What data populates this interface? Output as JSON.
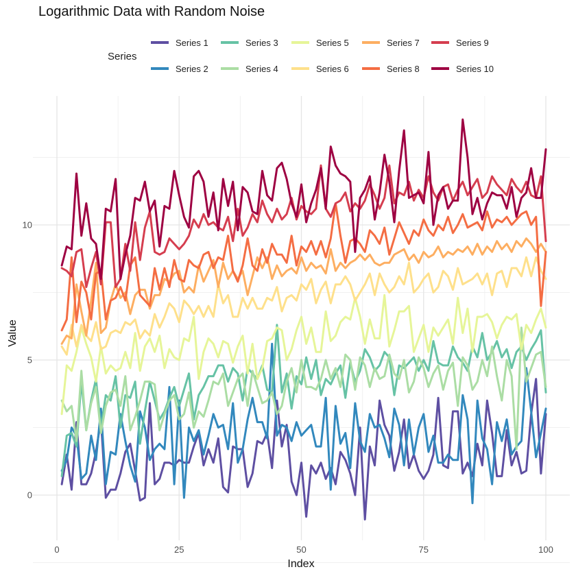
{
  "chart_data": {
    "type": "line",
    "title": "Logarithmic Data with Random Noise",
    "xlabel": "Index",
    "ylabel": "Value",
    "xlim": [
      0,
      100
    ],
    "ylim": [
      -1,
      14.5
    ],
    "x_ticks": [
      0,
      25,
      50,
      75,
      100
    ],
    "y_ticks": [
      0,
      5,
      10
    ],
    "grid": true,
    "legend_title": "Series",
    "legend_position": "top",
    "x": [
      1,
      2,
      3,
      4,
      5,
      6,
      7,
      8,
      9,
      10,
      11,
      12,
      13,
      14,
      15,
      16,
      17,
      18,
      19,
      20,
      21,
      22,
      23,
      24,
      25,
      26,
      27,
      28,
      29,
      30,
      31,
      32,
      33,
      34,
      35,
      36,
      37,
      38,
      39,
      40,
      41,
      42,
      43,
      44,
      45,
      46,
      47,
      48,
      49,
      50,
      51,
      52,
      53,
      54,
      55,
      56,
      57,
      58,
      59,
      60,
      61,
      62,
      63,
      64,
      65,
      66,
      67,
      68,
      69,
      70,
      71,
      72,
      73,
      74,
      75,
      76,
      77,
      78,
      79,
      80,
      81,
      82,
      83,
      84,
      85,
      86,
      87,
      88,
      89,
      90,
      91,
      92,
      93,
      94,
      95,
      96,
      97,
      98,
      99,
      100
    ],
    "series": [
      {
        "name": "Series 1",
        "color": "#5E4FA2",
        "values": [
          0.4,
          1.5,
          0.2,
          2.7,
          0.4,
          0.4,
          0.8,
          1.6,
          2.8,
          -0.1,
          0.2,
          0.2,
          0.8,
          1.6,
          1.9,
          0.9,
          -0.2,
          -0.1,
          3.4,
          0.4,
          0.6,
          1.2,
          1.2,
          1.1,
          1.3,
          1.2,
          1.2,
          1.8,
          2.3,
          1.1,
          1.7,
          1.2,
          2.1,
          0.3,
          0.1,
          1.8,
          1.7,
          1.7,
          0.3,
          0.8,
          2.0,
          1.9,
          2.3,
          1.0,
          3.5,
          1.8,
          2.6,
          0.5,
          0.0,
          1.2,
          -0.8,
          1.1,
          0.8,
          1.2,
          0.6,
          1.0,
          0.4,
          1.6,
          1.3,
          0.8,
          0.0,
          2.5,
          -0.9,
          1.8,
          1.1,
          3.5,
          2.6,
          2.2,
          0.9,
          1.6,
          2.8,
          1.0,
          1.5,
          0.9,
          0.6,
          0.9,
          1.5,
          3.6,
          1.1,
          1.0,
          3.1,
          3.1,
          0.8,
          1.2,
          0.7,
          1.9,
          1.1,
          3.5,
          2.3,
          0.7,
          0.7,
          2.4,
          1.1,
          1.6,
          0.8,
          0.9,
          3.0,
          4.3,
          0.8,
          3.0
        ]
      },
      {
        "name": "Series 2",
        "color": "#3288BD",
        "values": [
          0.9,
          1.3,
          2.5,
          2.2,
          0.6,
          0.8,
          2.2,
          1.3,
          3.2,
          0.4,
          1.6,
          1.5,
          3.0,
          2.0,
          1.1,
          0.5,
          3.1,
          2.5,
          1.3,
          1.7,
          1.9,
          1.7,
          4.0,
          0.4,
          3.5,
          -0.1,
          2.5,
          2.0,
          2.4,
          1.5,
          2.2,
          3.0,
          2.5,
          2.6,
          1.7,
          3.4,
          1.2,
          1.7,
          2.8,
          3.6,
          2.7,
          2.7,
          2.1,
          5.6,
          2.2,
          2.6,
          2.5,
          2.0,
          2.7,
          2.2,
          2.4,
          2.6,
          1.8,
          1.8,
          3.6,
          0.2,
          3.3,
          1.9,
          2.3,
          1.0,
          3.4,
          2.0,
          1.6,
          3.0,
          2.5,
          2.6,
          2.1,
          1.4,
          3.2,
          2.6,
          1.1,
          2.8,
          1.5,
          2.5,
          3.0,
          1.6,
          2.2,
          1.2,
          1.2,
          1.5,
          1.3,
          1.3,
          3.7,
          2.8,
          -0.3,
          3.5,
          2.1,
          1.7,
          0.4,
          2.7,
          2.0,
          2.8,
          1.5,
          1.8,
          2.0,
          4.7,
          3.1,
          1.4,
          2.3,
          3.2
        ]
      },
      {
        "name": "Series 3",
        "color": "#66C2A5",
        "values": [
          0.7,
          2.2,
          2.3,
          1.8,
          4.2,
          2.4,
          3.5,
          4.3,
          2.5,
          3.7,
          3.5,
          4.4,
          2.5,
          3.7,
          3.6,
          4.2,
          1.9,
          3.1,
          4.2,
          3.5,
          2.8,
          3.1,
          3.6,
          4.0,
          3.3,
          3.9,
          4.5,
          2.8,
          3.7,
          4.0,
          4.4,
          4.4,
          4.8,
          4.8,
          4.2,
          4.7,
          4.5,
          3.5,
          4.7,
          4.5,
          4.3,
          4.8,
          3.9,
          3.8,
          6.3,
          3.8,
          4.5,
          3.2,
          4.4,
          4.1,
          5.1,
          4.3,
          5.0,
          3.7,
          4.3,
          4.1,
          4.5,
          4.8,
          3.6,
          4.9,
          4.2,
          4.6,
          5.4,
          5.1,
          4.6,
          4.8,
          5.3,
          5.1,
          3.7,
          4.8,
          4.7,
          4.9,
          5.1,
          4.6,
          5.0,
          4.6,
          5.7,
          4.9,
          4.8,
          4.8,
          5.5,
          5.1,
          4.9,
          4.6,
          5.5,
          5.1,
          6.0,
          5.0,
          5.3,
          5.7,
          5.1,
          5.4,
          4.7,
          5.3,
          5.5,
          5.0,
          5.4,
          5.7,
          6.1,
          3.8
        ]
      },
      {
        "name": "Series 4",
        "color": "#ABDDA4",
        "values": [
          3.5,
          3.1,
          3.3,
          2.0,
          4.6,
          2.4,
          3.4,
          4.0,
          2.3,
          3.3,
          3.8,
          3.9,
          3.3,
          4.4,
          2.4,
          2.9,
          3.5,
          4.2,
          4.2,
          4.1,
          2.4,
          3.0,
          3.5,
          3.7,
          2.8,
          3.0,
          3.8,
          2.5,
          3.1,
          2.9,
          3.5,
          4.2,
          4.1,
          4.5,
          3.3,
          3.8,
          4.3,
          4.5,
          3.3,
          4.6,
          4.0,
          3.4,
          3.5,
          3.8,
          3.0,
          3.3,
          4.2,
          4.7,
          3.8,
          5.0,
          4.0,
          4.0,
          3.9,
          4.3,
          5.0,
          4.3,
          4.7,
          4.0,
          5.2,
          5.0,
          3.9,
          5.1,
          4.8,
          4.0,
          4.7,
          4.3,
          4.4,
          5.2,
          4.5,
          4.3,
          5.0,
          3.8,
          4.2,
          5.1,
          4.7,
          4.0,
          4.5,
          4.8,
          3.9,
          4.6,
          4.9,
          3.3,
          5.1,
          4.8,
          3.9,
          4.2,
          5.0,
          4.4,
          5.5,
          4.4,
          3.5,
          5.0,
          4.4,
          1.7,
          6.2,
          4.2,
          4.7,
          5.2,
          5.3,
          4.0
        ]
      },
      {
        "name": "Series 5",
        "color": "#E6F598",
        "values": [
          3.0,
          4.8,
          4.6,
          5.3,
          6.2,
          5.6,
          5.1,
          4.2,
          5.5,
          4.5,
          4.8,
          4.6,
          4.7,
          5.3,
          4.7,
          6.0,
          4.6,
          5.5,
          5.8,
          5.3,
          5.9,
          4.7,
          5.4,
          5.1,
          5.0,
          5.8,
          5.7,
          6.6,
          4.3,
          5.3,
          5.8,
          5.6,
          5.1,
          5.7,
          5.6,
          4.9,
          5.5,
          5.9,
          4.5,
          5.6,
          4.3,
          4.7,
          5.7,
          5.8,
          6.2,
          6.1,
          5.0,
          5.4,
          6.1,
          6.6,
          5.6,
          6.2,
          5.3,
          5.3,
          6.8,
          5.7,
          5.9,
          6.4,
          6.6,
          6.5,
          7.3,
          6.6,
          5.6,
          6.5,
          5.8,
          5.8,
          7.4,
          5.5,
          6.1,
          6.8,
          6.8,
          7.0,
          5.3,
          5.8,
          6.3,
          5.3,
          6.2,
          5.9,
          6.2,
          6.5,
          5.6,
          7.3,
          6.0,
          6.9,
          5.3,
          6.6,
          6.6,
          6.7,
          6.4,
          5.8,
          6.3,
          6.6,
          6.5,
          6.7,
          5.4,
          6.3,
          6.0,
          6.5,
          6.9,
          6.2
        ]
      },
      {
        "name": "Series 6",
        "color": "#FEE08B",
        "values": [
          5.5,
          5.2,
          6.3,
          5.5,
          6.3,
          5.9,
          5.7,
          6.4,
          5.4,
          5.5,
          6.0,
          6.1,
          6.0,
          6.4,
          6.3,
          6.5,
          5.8,
          6.1,
          5.9,
          6.7,
          6.2,
          6.6,
          7.1,
          6.9,
          6.4,
          7.2,
          7.0,
          6.7,
          7.0,
          6.6,
          7.0,
          6.6,
          7.8,
          7.1,
          7.4,
          6.6,
          6.6,
          7.3,
          6.9,
          7.3,
          6.9,
          6.9,
          7.3,
          7.2,
          7.7,
          6.8,
          7.3,
          7.4,
          7.2,
          7.8,
          7.6,
          8.0,
          7.1,
          7.6,
          7.9,
          7.1,
          7.8,
          7.8,
          8.1,
          7.8,
          7.2,
          7.5,
          7.8,
          8.2,
          7.4,
          8.2,
          7.8,
          7.5,
          7.7,
          8.1,
          7.8,
          8.6,
          7.5,
          7.7,
          8.0,
          8.2,
          7.5,
          7.7,
          8.3,
          8.1,
          7.6,
          8.4,
          7.8,
          7.9,
          8.0,
          8.2,
          7.8,
          8.2,
          7.4,
          8.2,
          8.3,
          7.7,
          8.4,
          8.4,
          8.1,
          8.8,
          8.1,
          8.8,
          8.3,
          8.0
        ]
      },
      {
        "name": "Series 7",
        "color": "#FDAE61",
        "values": [
          5.6,
          5.9,
          5.8,
          7.8,
          6.8,
          5.9,
          7.2,
          8.6,
          6.0,
          6.2,
          7.2,
          7.8,
          7.3,
          7.5,
          6.7,
          7.4,
          7.6,
          7.6,
          6.9,
          7.4,
          7.4,
          8.0,
          7.9,
          8.2,
          8.3,
          7.5,
          7.7,
          7.5,
          8.5,
          7.9,
          8.3,
          8.7,
          7.7,
          8.6,
          8.0,
          8.3,
          8.0,
          8.3,
          7.4,
          8.1,
          8.8,
          8.4,
          8.8,
          8.0,
          8.5,
          8.1,
          8.3,
          8.4,
          8.2,
          8.8,
          8.3,
          8.6,
          8.4,
          8.5,
          8.2,
          9.1,
          8.3,
          8.6,
          8.4,
          8.6,
          8.7,
          8.9,
          8.7,
          8.9,
          8.6,
          8.5,
          8.6,
          8.6,
          8.9,
          9.0,
          9.1,
          8.7,
          8.9,
          8.6,
          9.0,
          8.8,
          8.9,
          9.2,
          8.8,
          9.0,
          8.9,
          9.1,
          9.0,
          9.2,
          8.9,
          9.3,
          8.9,
          9.2,
          9.0,
          9.4,
          9.1,
          9.3,
          9.0,
          9.4,
          9.2,
          9.5,
          9.3,
          9.0,
          9.3,
          9.0
        ]
      },
      {
        "name": "Series 8",
        "color": "#F46D43",
        "values": [
          6.1,
          6.5,
          8.8,
          6.4,
          7.9,
          7.5,
          6.5,
          8.2,
          8.3,
          6.5,
          7.2,
          7.3,
          7.7,
          7.2,
          8.5,
          8.8,
          7.4,
          7.2,
          7.0,
          8.4,
          7.6,
          8.4,
          7.7,
          8.7,
          8.0,
          7.9,
          8.7,
          8.5,
          8.4,
          8.9,
          9.0,
          8.4,
          8.8,
          8.7,
          9.6,
          8.3,
          7.9,
          8.5,
          9.5,
          8.5,
          8.3,
          9.1,
          8.6,
          9.3,
          8.9,
          8.9,
          8.6,
          9.6,
          8.5,
          9.2,
          9.0,
          9.4,
          8.9,
          9.4,
          8.8,
          9.5,
          10.8,
          9.6,
          8.6,
          9.4,
          9.5,
          9.3,
          9.0,
          9.8,
          9.6,
          9.3,
          9.9,
          8.9,
          9.5,
          10.1,
          9.7,
          9.3,
          9.8,
          9.6,
          10.2,
          9.8,
          9.6,
          10.0,
          9.8,
          10.3,
          9.7,
          10.0,
          10.4,
          9.9,
          10.0,
          10.1,
          9.8,
          10.5,
          9.9,
          10.2,
          10.1,
          10.3,
          10.0,
          10.2,
          10.4,
          10.5,
          10.0,
          10.3,
          7.0,
          9.0
        ]
      },
      {
        "name": "Series 9",
        "color": "#D53E4F",
        "values": [
          8.4,
          8.3,
          8.1,
          9.0,
          9.1,
          7.7,
          8.4,
          9.0,
          7.8,
          10.1,
          10.1,
          7.7,
          8.0,
          9.3,
          8.3,
          10.1,
          8.7,
          9.9,
          10.5,
          9.0,
          8.9,
          9.0,
          9.5,
          9.3,
          9.1,
          9.3,
          9.6,
          10.2,
          9.9,
          10.4,
          10.0,
          10.1,
          9.9,
          9.8,
          10.3,
          9.4,
          10.6,
          9.6,
          9.9,
          10.4,
          10.1,
          10.9,
          10.4,
          10.1,
          10.6,
          10.2,
          10.4,
          11.0,
          10.2,
          10.7,
          10.5,
          10.4,
          10.6,
          12.2,
          10.6,
          10.3,
          10.8,
          10.9,
          11.2,
          10.5,
          10.8,
          10.6,
          10.9,
          11.5,
          11.1,
          10.6,
          11.0,
          12.2,
          10.8,
          11.2,
          11.1,
          11.6,
          10.9,
          11.3,
          11.0,
          11.8,
          11.2,
          10.9,
          11.4,
          11.5,
          10.9,
          11.3,
          11.6,
          11.1,
          11.4,
          11.7,
          11.0,
          11.2,
          11.8,
          11.5,
          11.3,
          11.1,
          11.7,
          11.4,
          11.2,
          11.6,
          11.1,
          11.0,
          11.8,
          9.4
        ]
      },
      {
        "name": "Series 10",
        "color": "#9E0142",
        "values": [
          8.5,
          9.2,
          9.1,
          11.9,
          9.6,
          10.8,
          9.5,
          9.3,
          8.0,
          10.6,
          10.5,
          11.7,
          8.0,
          8.9,
          9.6,
          11.0,
          10.9,
          11.6,
          10.5,
          10.9,
          9.2,
          10.7,
          10.6,
          12.0,
          11.1,
          10.3,
          9.9,
          11.8,
          12.0,
          11.6,
          10.3,
          11.2,
          9.8,
          11.7,
          10.7,
          11.6,
          9.8,
          11.4,
          11.2,
          10.5,
          10.4,
          12.0,
          11.1,
          10.9,
          12.1,
          12.3,
          11.7,
          10.8,
          10.3,
          11.5,
          10.1,
          10.8,
          11.3,
          12.1,
          10.6,
          12.9,
          12.2,
          11.9,
          11.8,
          11.6,
          9.0,
          11.0,
          11.3,
          11.8,
          10.2,
          11.2,
          12.6,
          11.6,
          10.1,
          12.0,
          13.5,
          11.0,
          11.1,
          11.2,
          10.8,
          12.7,
          10.0,
          11.1,
          11.4,
          10.6,
          10.9,
          10.9,
          13.9,
          12.5,
          10.4,
          11.0,
          10.2,
          10.8,
          11.2,
          11.1,
          11.1,
          10.6,
          11.4,
          10.3,
          11.0,
          11.2,
          12.1,
          11.0,
          11.0,
          12.8
        ]
      }
    ]
  }
}
